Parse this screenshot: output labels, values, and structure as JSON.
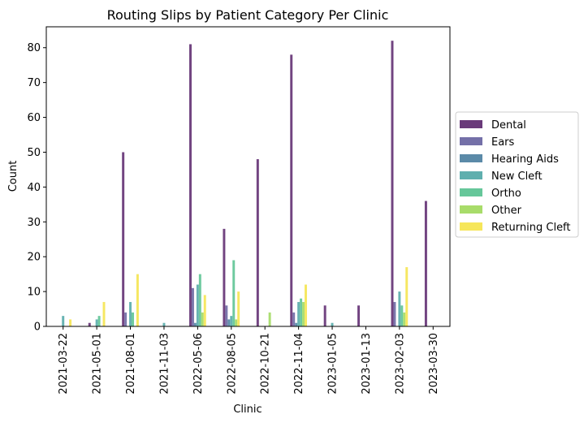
{
  "chart_data": {
    "type": "bar",
    "title": "Routing Slips by Patient Category Per Clinic",
    "xlabel": "Clinic",
    "ylabel": "Count",
    "ylim": [
      0,
      86
    ],
    "yticks": [
      0,
      10,
      20,
      30,
      40,
      50,
      60,
      70,
      80
    ],
    "grid": false,
    "legend_position": "right-outside",
    "categories": [
      "2021-03-22",
      "2021-05-01",
      "2021-08-01",
      "2021-11-03",
      "2022-05-06",
      "2022-08-05",
      "2022-10-21",
      "2022-11-04",
      "2023-01-05",
      "2023-01-13",
      "2023-02-03",
      "2023-03-30"
    ],
    "series": [
      {
        "name": "Dental",
        "color": "#6a3a7a",
        "values": [
          0,
          1,
          50,
          0,
          81,
          28,
          48,
          78,
          6,
          6,
          82,
          36
        ]
      },
      {
        "name": "Ears",
        "color": "#7470a8",
        "values": [
          0,
          0,
          4,
          0,
          11,
          6,
          0,
          4,
          0,
          0,
          7,
          0
        ]
      },
      {
        "name": "Hearing Aids",
        "color": "#5b8aa8",
        "values": [
          0,
          0,
          0,
          0,
          1,
          2,
          0,
          1,
          0,
          0,
          0,
          0
        ]
      },
      {
        "name": "New Cleft",
        "color": "#5fafae",
        "values": [
          3,
          2,
          7,
          1,
          12,
          3,
          0,
          7,
          1,
          0,
          10,
          0
        ]
      },
      {
        "name": "Ortho",
        "color": "#66c79a",
        "values": [
          0,
          3,
          4,
          0,
          15,
          19,
          0,
          8,
          0,
          0,
          6,
          0
        ]
      },
      {
        "name": "Other",
        "color": "#a8dc6a",
        "values": [
          0,
          0,
          0,
          0,
          4,
          2,
          4,
          7,
          0,
          0,
          4,
          0
        ]
      },
      {
        "name": "Returning Cleft",
        "color": "#f6e65a",
        "values": [
          2,
          7,
          15,
          0,
          9,
          10,
          0,
          12,
          0,
          0,
          17,
          0
        ]
      }
    ]
  }
}
